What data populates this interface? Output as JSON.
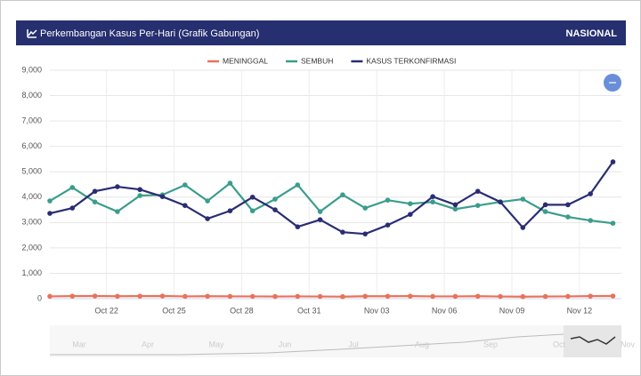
{
  "header": {
    "title": "Perkembangan Kasus Per-Hari (Grafik Gabungan)",
    "badge": "NASIONAL"
  },
  "chart_data": {
    "type": "line",
    "categories": [
      null,
      null,
      "Oct 22",
      null,
      null,
      "Oct 25",
      null,
      null,
      "Oct 28",
      null,
      null,
      "Oct 31",
      null,
      null,
      "Nov 03",
      null,
      null,
      "Nov 06",
      null,
      null,
      "Nov 09",
      null,
      null,
      "Nov 12",
      null,
      null
    ],
    "series": [
      {
        "name": "MENINGGAL",
        "color": "#e8735a",
        "values": [
          90,
          100,
          105,
          95,
          100,
          105,
          90,
          95,
          90,
          90,
          85,
          90,
          85,
          80,
          95,
          95,
          100,
          90,
          90,
          95,
          85,
          80,
          85,
          90,
          100,
          105
        ]
      },
      {
        "name": "SEMBUH",
        "color": "#3a9d8c",
        "values": [
          3850,
          4380,
          3810,
          3430,
          4060,
          4090,
          4480,
          3850,
          4550,
          3460,
          3920,
          4480,
          3430,
          4090,
          3570,
          3880,
          3740,
          3810,
          3530,
          3670,
          3810,
          3920,
          3430,
          3220,
          3080,
          2970
        ]
      },
      {
        "name": "KASUS TERKONFIRMASI",
        "color": "#2b2d73",
        "values": [
          3360,
          3570,
          4230,
          4410,
          4300,
          4020,
          3670,
          3150,
          3460,
          4000,
          3500,
          2830,
          3110,
          2620,
          2550,
          2900,
          3320,
          4020,
          3700,
          4230,
          3810,
          2800,
          3700,
          3700,
          4130,
          5390
        ]
      }
    ],
    "ylim": [
      0,
      9000
    ],
    "yticks": [
      0,
      {
        "value": 1000,
        "label": "1,000"
      },
      {
        "value": 2000,
        "label": "2,000"
      },
      {
        "value": 3000,
        "label": "3,000"
      },
      {
        "value": 4000,
        "label": "4,000"
      },
      {
        "value": 5000,
        "label": "5,000"
      },
      {
        "value": 6000,
        "label": "6,000"
      },
      {
        "value": 7000,
        "label": "7,000"
      },
      {
        "value": 8000,
        "label": "8,000"
      },
      {
        "value": 9000,
        "label": "9,000"
      }
    ],
    "grid": true,
    "legend": "top"
  },
  "navigator": {
    "labels": [
      "Mar",
      "Apr",
      "May",
      "Jun",
      "Jul",
      "Aug",
      "Sep",
      "Oct",
      "Nov"
    ]
  }
}
